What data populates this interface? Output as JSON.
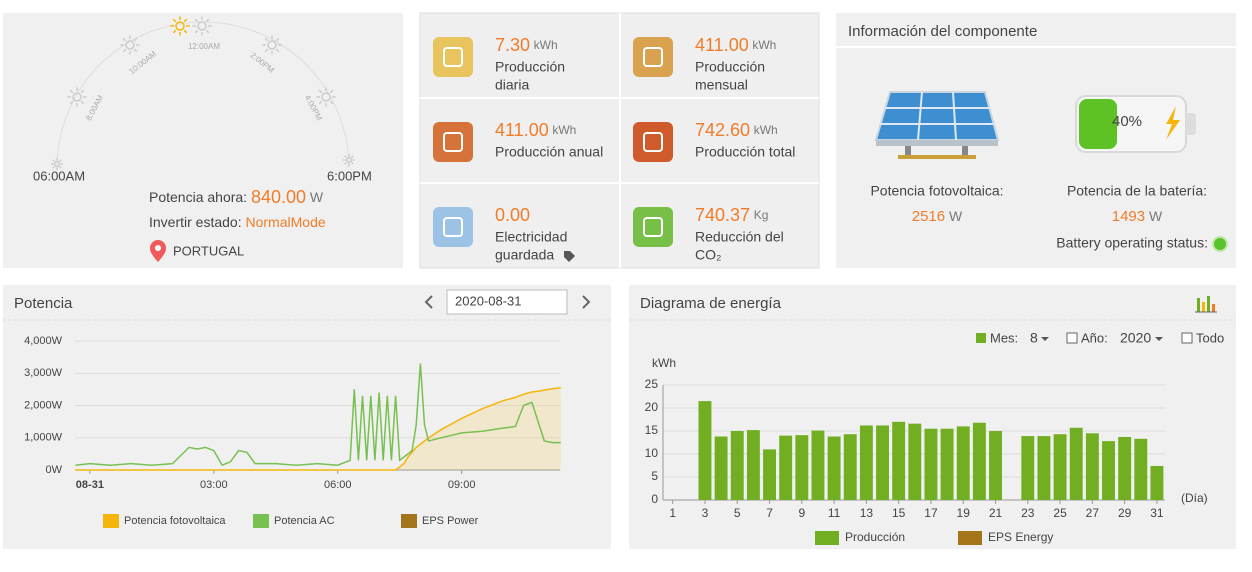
{
  "status": {
    "time_start": "06:00AM",
    "time_end": "6:00PM",
    "hours": [
      "8:00AM",
      "10:00AM",
      "12:00AM",
      "2:00PM",
      "4:00PM"
    ],
    "power_label": "Potencia ahora:",
    "power_value": "840.00",
    "power_unit": "W",
    "state_label": "Invertir estado:",
    "state_value": "NormalMode",
    "location": "PORTUGAL"
  },
  "stats": [
    {
      "value": "7.30",
      "unit": "kWh",
      "label": [
        "Producción",
        "diaria"
      ]
    },
    {
      "value": "411.00",
      "unit": "kWh",
      "label": [
        "Producción",
        "mensual"
      ]
    },
    {
      "value": "411.00",
      "unit": "kWh",
      "label": [
        "Producción anual"
      ]
    },
    {
      "value": "742.60",
      "unit": "kWh",
      "label": [
        "Producción total"
      ]
    },
    {
      "value": "0.00",
      "label": [
        "Electricidad",
        "guardada"
      ]
    },
    {
      "value": "740.37",
      "unit": "Kg",
      "label": [
        "Reducción del",
        "CO₂"
      ]
    }
  ],
  "component": {
    "title": "Información del componente",
    "pv_label": "Potencia fotovoltaica:",
    "pv_value": "2516",
    "pv_unit": "W",
    "battery_percent": "40%",
    "battery_label": "Potencia de la batería:",
    "battery_value": "1493",
    "battery_unit": "W",
    "status_label": "Battery operating status:"
  },
  "chart_data": [
    {
      "type": "line",
      "title": "Potencia",
      "date": "2020-08-31",
      "x": [
        -0.35,
        0,
        0.5,
        1,
        1.5,
        2,
        2.2,
        2.4,
        2.6,
        2.8,
        3,
        3.2,
        3.4,
        3.6,
        3.8,
        4,
        4.5,
        5,
        5.5,
        6,
        6.3,
        6.4,
        6.5,
        6.6,
        6.7,
        6.8,
        6.9,
        7,
        7.1,
        7.2,
        7.3,
        7.4,
        7.5,
        7.6,
        7.7,
        7.8,
        7.9,
        8,
        8.1,
        8.2,
        8.5,
        9,
        9.5,
        10,
        10.3,
        10.5,
        10.7,
        10.9,
        11,
        11.2,
        11.4
      ],
      "series": [
        {
          "name": "Potencia fotovoltaica",
          "color": "#f5b50a",
          "fill_area": true,
          "values": [
            0,
            0,
            0,
            0,
            0,
            0,
            0,
            0,
            0,
            0,
            0,
            0,
            0,
            0,
            0,
            0,
            0,
            0,
            0,
            0,
            0,
            0,
            0,
            0,
            0,
            0,
            0,
            0,
            0,
            0,
            0,
            0,
            100,
            200,
            400,
            550,
            700,
            800,
            900,
            1000,
            1250,
            1600,
            1900,
            2150,
            2250,
            2350,
            2420,
            2450,
            2480,
            2520,
            2550
          ]
        },
        {
          "name": "Potencia AC",
          "color": "#78c050",
          "values": [
            150,
            200,
            150,
            200,
            150,
            200,
            450,
            700,
            650,
            700,
            600,
            150,
            250,
            600,
            550,
            200,
            200,
            150,
            200,
            150,
            300,
            2500,
            300,
            2300,
            300,
            2300,
            300,
            2400,
            300,
            2300,
            300,
            2300,
            300,
            400,
            500,
            600,
            1400,
            3300,
            1400,
            900,
            1000,
            1150,
            1200,
            1300,
            1350,
            2000,
            2100,
            1300,
            900,
            850,
            850
          ]
        },
        {
          "name": "EPS Power",
          "color": "#a4741a",
          "values": [
            null,
            null,
            null,
            null,
            null,
            null,
            null,
            null,
            null,
            null,
            null,
            null,
            null,
            null,
            null,
            null,
            null,
            null,
            null,
            null,
            null,
            null,
            null,
            null,
            null,
            null,
            null,
            null,
            null,
            null,
            null,
            null,
            null,
            null,
            null,
            null,
            null,
            null,
            null,
            null,
            null,
            null,
            null,
            null,
            null,
            null,
            null,
            null,
            null,
            null,
            null
          ]
        }
      ],
      "xlim": [
        -0.36,
        11.38
      ],
      "xticks": [
        {
          "value": 0,
          "label": "08-31"
        },
        {
          "value": 3,
          "label": "03:00"
        },
        {
          "value": 6,
          "label": "06:00"
        },
        {
          "value": 9,
          "label": "09:00"
        }
      ],
      "ylim": [
        0,
        4000
      ],
      "yticks": [
        {
          "value": 0,
          "label": "0W"
        },
        {
          "value": 1000,
          "label": "1,000W"
        },
        {
          "value": 2000,
          "label": "2,000W"
        },
        {
          "value": 3000,
          "label": "3,000W"
        },
        {
          "value": 4000,
          "label": "4,000W"
        }
      ],
      "grid": true
    },
    {
      "type": "bar",
      "title": "Diagrama de energía",
      "month_label": "Mes:",
      "month": "8",
      "year_label": "Año:",
      "year": "2020",
      "all_label": "Todo",
      "y_label": "kWh",
      "x_label": "(Día)",
      "x": [
        1,
        2,
        3,
        4,
        5,
        6,
        7,
        8,
        9,
        10,
        11,
        12,
        13,
        14,
        15,
        16,
        17,
        18,
        19,
        20,
        21,
        22,
        23,
        24,
        25,
        26,
        27,
        28,
        29,
        30,
        31
      ],
      "series": [
        {
          "name": "Producción",
          "color": "#72ae22",
          "values": [
            null,
            null,
            21.5,
            13.8,
            15,
            15.2,
            11,
            14,
            14.1,
            15.1,
            13.8,
            14.3,
            16.2,
            16.2,
            17,
            16.6,
            15.5,
            15.5,
            16,
            16.8,
            15,
            null,
            13.9,
            13.9,
            14.3,
            15.7,
            14.5,
            12.8,
            13.7,
            13.3,
            7.4
          ]
        },
        {
          "name": "EPS Energy",
          "color": "#a4741a",
          "values": [
            null,
            null,
            null,
            null,
            null,
            null,
            null,
            null,
            null,
            null,
            null,
            null,
            null,
            null,
            null,
            null,
            null,
            null,
            null,
            null,
            null,
            null,
            null,
            null,
            null,
            null,
            null,
            null,
            null,
            null,
            null
          ]
        }
      ],
      "xlim": [
        0.4,
        31.5
      ],
      "xticks": [
        1,
        3,
        5,
        7,
        9,
        11,
        13,
        15,
        17,
        19,
        21,
        23,
        25,
        27,
        29,
        31
      ],
      "ylim": [
        0,
        25
      ],
      "yticks": [
        0,
        5,
        10,
        15,
        20,
        25
      ],
      "grid": true
    }
  ]
}
